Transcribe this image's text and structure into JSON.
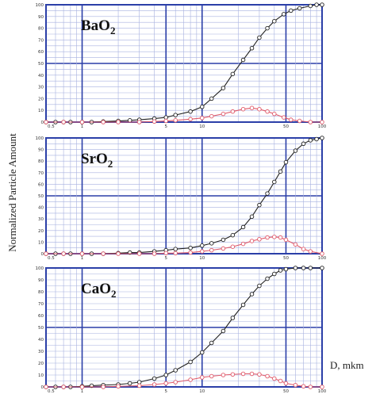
{
  "figure": {
    "ylabel": "Normalized Particle Amount",
    "xlabel": "D, mkm"
  },
  "chart_data": [
    {
      "type": "line",
      "title": "BaO2",
      "title_main": "BaO",
      "title_sub": "2",
      "x_scale": "log",
      "xlim": [
        0.5,
        100
      ],
      "ylim": [
        0,
        100
      ],
      "x_ticks": [
        0.5,
        1,
        5,
        10,
        50,
        100
      ],
      "x_tick_labels": [
        "0.5",
        "1",
        "5",
        "10",
        "50",
        "100"
      ],
      "y_ticks": [
        0,
        10,
        20,
        30,
        40,
        50,
        60,
        70,
        80,
        90,
        100
      ],
      "grid": true,
      "series": [
        {
          "color": "#222222",
          "x": [
            0.5,
            0.6,
            0.7,
            0.8,
            1,
            1.2,
            1.5,
            2,
            2.5,
            3,
            4,
            5,
            6,
            8,
            10,
            12,
            15,
            18,
            22,
            26,
            30,
            35,
            40,
            48,
            55,
            65,
            80,
            90,
            100
          ],
          "values": [
            0,
            0,
            0,
            0,
            0,
            0,
            0.5,
            1,
            1.5,
            2,
            3,
            4,
            6,
            9,
            13,
            20,
            29,
            41,
            53,
            63,
            72,
            80,
            86,
            92,
            95,
            97,
            99,
            100,
            100
          ]
        },
        {
          "color": "#e05a6a",
          "x": [
            0.5,
            0.7,
            1,
            1.5,
            2,
            3,
            4,
            5,
            6,
            8,
            10,
            12,
            15,
            18,
            22,
            26,
            30,
            35,
            40,
            48,
            55,
            65,
            80,
            100
          ],
          "values": [
            0,
            0,
            0,
            0,
            0,
            0,
            0.5,
            1,
            1.5,
            2.5,
            3.5,
            5,
            7,
            9,
            11,
            12,
            11,
            9,
            7,
            4,
            2,
            1,
            0,
            0
          ]
        }
      ]
    },
    {
      "type": "line",
      "title": "SrO2",
      "title_main": "SrO",
      "title_sub": "2",
      "x_scale": "log",
      "xlim": [
        0.5,
        100
      ],
      "ylim": [
        0,
        100
      ],
      "x_ticks": [
        0.5,
        1,
        5,
        10,
        50,
        100
      ],
      "x_tick_labels": [
        "0.5",
        "1",
        "5",
        "10",
        "50",
        "100"
      ],
      "y_ticks": [
        0,
        10,
        20,
        30,
        40,
        50,
        60,
        70,
        80,
        90,
        100
      ],
      "grid": true,
      "series": [
        {
          "color": "#222222",
          "x": [
            0.5,
            0.6,
            0.7,
            0.8,
            1,
            1.2,
            1.5,
            2,
            2.5,
            3,
            4,
            5,
            6,
            8,
            10,
            12,
            15,
            18,
            22,
            26,
            30,
            35,
            40,
            45,
            50,
            60,
            70,
            80,
            90,
            100
          ],
          "values": [
            0,
            0,
            0,
            0,
            0,
            0,
            0,
            0.5,
            1,
            1,
            2,
            3,
            4,
            5,
            7,
            9,
            12,
            16,
            23,
            32,
            42,
            52,
            62,
            71,
            79,
            89,
            95,
            98,
            99,
            100
          ]
        },
        {
          "color": "#e05a6a",
          "x": [
            0.5,
            0.7,
            1,
            1.5,
            2,
            3,
            4,
            5,
            6,
            8,
            10,
            12,
            15,
            18,
            22,
            26,
            30,
            35,
            40,
            45,
            50,
            60,
            70,
            80,
            100
          ],
          "values": [
            0,
            0,
            0,
            0,
            0,
            0,
            0,
            0.5,
            0.5,
            1,
            2,
            3,
            4.5,
            6,
            8.5,
            11,
            12.5,
            14,
            14.5,
            14,
            12,
            8,
            4,
            2,
            0
          ]
        }
      ]
    },
    {
      "type": "line",
      "title": "CaO2",
      "title_main": "CaO",
      "title_sub": "2",
      "x_scale": "log",
      "xlim": [
        0.5,
        100
      ],
      "ylim": [
        0,
        100
      ],
      "x_ticks": [
        0.5,
        1,
        5,
        10,
        50,
        100
      ],
      "x_tick_labels": [
        "0.5",
        "1",
        "5",
        "10",
        "50",
        "100"
      ],
      "y_ticks": [
        0,
        10,
        20,
        30,
        40,
        50,
        60,
        70,
        80,
        90,
        100
      ],
      "grid": true,
      "series": [
        {
          "color": "#222222",
          "x": [
            0.5,
            0.6,
            0.7,
            0.8,
            1,
            1.2,
            1.5,
            2,
            2.5,
            3,
            4,
            5,
            6,
            8,
            10,
            12,
            15,
            18,
            22,
            26,
            30,
            35,
            40,
            45,
            50,
            60,
            70,
            80,
            100
          ],
          "values": [
            0,
            0,
            0,
            0,
            0.5,
            1,
            1.5,
            2,
            3,
            4,
            7,
            10,
            14,
            21,
            29,
            37,
            47,
            58,
            69,
            78,
            85,
            91,
            95,
            98,
            99,
            100,
            100,
            100,
            100
          ]
        },
        {
          "color": "#e05a6a",
          "x": [
            0.5,
            0.7,
            1,
            1.5,
            2,
            3,
            4,
            5,
            6,
            8,
            10,
            12,
            15,
            18,
            22,
            26,
            30,
            35,
            40,
            45,
            50,
            60,
            70,
            80,
            100
          ],
          "values": [
            0,
            0,
            0,
            0,
            0.5,
            1,
            2,
            3,
            4,
            6,
            8,
            9,
            10,
            10.5,
            11,
            11,
            10.5,
            9,
            7,
            5,
            3,
            1.5,
            0.5,
            0,
            0
          ]
        }
      ]
    }
  ]
}
